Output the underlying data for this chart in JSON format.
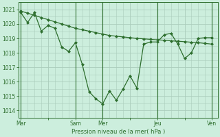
{
  "background_color": "#cceedd",
  "grid_color": "#aaccbb",
  "line_color": "#2d6e2d",
  "marker_color": "#2d6e2d",
  "xlabel": "Pression niveau de la mer( hPa )",
  "ylim": [
    1013.5,
    1021.5
  ],
  "yticks": [
    1014,
    1015,
    1016,
    1017,
    1018,
    1019,
    1020,
    1021
  ],
  "xtick_labels": [
    "Mar",
    "",
    "Sam",
    "Mer",
    "",
    "Jeu",
    "",
    "Ven"
  ],
  "xtick_positions": [
    0,
    24,
    48,
    72,
    96,
    120,
    144,
    168
  ],
  "vline_positions": [
    0,
    48,
    72,
    120,
    168
  ],
  "xlim": [
    -2,
    173
  ],
  "series1_x": [
    0,
    6,
    12,
    18,
    24,
    30,
    36,
    42,
    48,
    54,
    60,
    66,
    72,
    78,
    84,
    90,
    96,
    102,
    108,
    114,
    120,
    126,
    132,
    138,
    144,
    150,
    156,
    162,
    168
  ],
  "series1_y": [
    1020.8,
    1020.1,
    1020.8,
    1019.5,
    1019.9,
    1019.7,
    1018.4,
    1018.1,
    1018.7,
    1017.2,
    1015.3,
    1014.8,
    1014.45,
    1015.35,
    1014.7,
    1015.5,
    1016.4,
    1015.55,
    1018.6,
    1018.75,
    1018.75,
    1019.25,
    1019.35,
    1018.6,
    1017.6,
    1018.0,
    1019.0,
    1019.05,
    1019.05
  ],
  "series2_x": [
    0,
    6,
    12,
    18,
    24,
    30,
    36,
    42,
    48,
    54,
    60,
    66,
    72,
    78,
    84,
    90,
    96,
    102,
    108,
    114,
    120,
    126,
    132,
    138,
    144,
    150,
    156,
    162,
    168
  ],
  "series2_y": [
    1020.9,
    1020.75,
    1020.6,
    1020.45,
    1020.3,
    1020.15,
    1020.0,
    1019.85,
    1019.7,
    1019.6,
    1019.5,
    1019.4,
    1019.3,
    1019.2,
    1019.15,
    1019.1,
    1019.05,
    1019.0,
    1018.97,
    1018.93,
    1018.9,
    1018.87,
    1018.83,
    1018.8,
    1018.77,
    1018.73,
    1018.7,
    1018.65,
    1018.6
  ],
  "figsize": [
    3.2,
    2.0
  ],
  "dpi": 100
}
